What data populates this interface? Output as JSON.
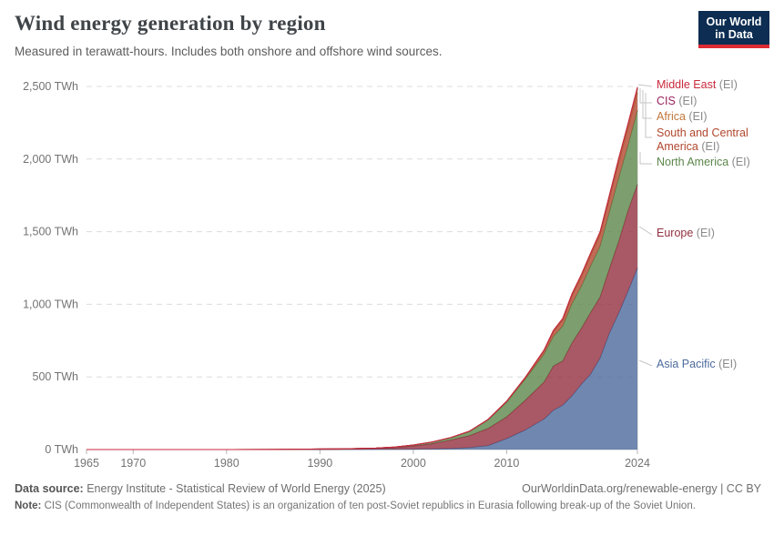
{
  "header": {
    "title": "Wind energy generation by region",
    "subtitle": "Measured in terawatt-hours. Includes both onshore and offshore wind sources."
  },
  "logo": {
    "line1": "Our World",
    "line2": "in Data",
    "bg_color": "#0d2d52",
    "accent_color": "#dd2a33"
  },
  "chart_data": {
    "type": "area",
    "stacked": true,
    "title": "Wind energy generation by region",
    "unit": "TWh",
    "xlabel": "",
    "ylabel": "",
    "xlim": [
      1965,
      2024
    ],
    "ylim": [
      0,
      2500
    ],
    "grid": "horizontal-dashed",
    "legend_position": "right",
    "stack_order": "bottom-to-top",
    "x": [
      1965,
      1970,
      1975,
      1980,
      1985,
      1988,
      1990,
      1992,
      1994,
      1996,
      1998,
      2000,
      2002,
      2004,
      2006,
      2008,
      2010,
      2012,
      2014,
      2015,
      2016,
      2017,
      2018,
      2019,
      2020,
      2021,
      2022,
      2023,
      2024
    ],
    "series": [
      {
        "name": "Asia Pacific",
        "suffix": "(EI)",
        "color": "#4C6A9C",
        "values": [
          0,
          0,
          0,
          0,
          0.02,
          0.08,
          0.15,
          0.35,
          0.7,
          1.2,
          1.7,
          2.5,
          4,
          7,
          13,
          27,
          75,
          135,
          210,
          270,
          305,
          370,
          450,
          520,
          630,
          800,
          940,
          1090,
          1250
        ]
      },
      {
        "name": "Europe",
        "suffix": "(EI)",
        "color": "#93303F",
        "values": [
          0,
          0,
          0,
          0.01,
          0.06,
          0.4,
          0.8,
          1.5,
          3,
          5.5,
          11,
          22,
          36,
          58,
          82,
          118,
          150,
          205,
          255,
          305,
          305,
          365,
          385,
          425,
          420,
          445,
          495,
          555,
          575
        ]
      },
      {
        "name": "North America",
        "suffix": "(EI)",
        "color": "#5C864A",
        "values": [
          0,
          0,
          0,
          0.02,
          0.7,
          2,
          2.8,
          3,
          3.5,
          3.5,
          3.8,
          6,
          11,
          16,
          28,
          58,
          101,
          145,
          192,
          204,
          240,
          270,
          290,
          320,
          350,
          390,
          435,
          450,
          510
        ]
      },
      {
        "name": "South and Central America",
        "suffix": "(EI)",
        "color": "#B1472E",
        "values": [
          0,
          0,
          0,
          0,
          0,
          0,
          0,
          0,
          0,
          0.05,
          0.15,
          0.4,
          0.6,
          1,
          2,
          2.5,
          4,
          9,
          23,
          32,
          42,
          55,
          65,
          72,
          80,
          92,
          108,
          116,
          122
        ]
      },
      {
        "name": "Africa",
        "suffix": "(EI)",
        "color": "#C1763B",
        "values": [
          0,
          0,
          0,
          0,
          0,
          0,
          0,
          0,
          0,
          0.02,
          0.05,
          0.2,
          0.3,
          0.6,
          1,
          1.5,
          2.5,
          3,
          5,
          8,
          10,
          12,
          14,
          15,
          16,
          18,
          20,
          22,
          24
        ]
      },
      {
        "name": "CIS",
        "suffix": "(EI)",
        "color": "#9A2460",
        "values": [
          0,
          0,
          0,
          0,
          0,
          0,
          0,
          0,
          0,
          0,
          0,
          0,
          0,
          0,
          0,
          0,
          0.1,
          0.1,
          0.2,
          0.2,
          0.3,
          0.3,
          0.5,
          1,
          1.5,
          3,
          5,
          7,
          8
        ]
      },
      {
        "name": "Middle East",
        "suffix": "(EI)",
        "color": "#C92A3C",
        "values": [
          0,
          0,
          0,
          0,
          0,
          0,
          0,
          0,
          0,
          0,
          0,
          0,
          0,
          0,
          0,
          0.1,
          0.2,
          0.3,
          0.4,
          0.5,
          0.6,
          0.8,
          1,
          1.5,
          2,
          3,
          4,
          5,
          6
        ]
      }
    ],
    "yticks": [
      {
        "value": 0,
        "label": "0 TWh"
      },
      {
        "value": 500,
        "label": "500 TWh"
      },
      {
        "value": 1000,
        "label": "1,000 TWh"
      },
      {
        "value": 1500,
        "label": "1,500 TWh"
      },
      {
        "value": 2000,
        "label": "2,000 TWh"
      },
      {
        "value": 2500,
        "label": "2,500 TWh"
      }
    ],
    "xticks": [
      {
        "value": 1965,
        "label": "1965"
      },
      {
        "value": 1970,
        "label": "1970"
      },
      {
        "value": 1980,
        "label": "1980"
      },
      {
        "value": 1990,
        "label": "1990"
      },
      {
        "value": 2000,
        "label": "2000"
      },
      {
        "value": 2010,
        "label": "2010"
      },
      {
        "value": 2024,
        "label": "2024"
      }
    ]
  },
  "footer": {
    "datasource_label": "Data source:",
    "datasource_text": "Energy Institute - Statistical Review of World Energy (2025)",
    "link_text": "OurWorldinData.org/renewable-energy | CC BY",
    "note_label": "Note:",
    "note_text": "CIS (Commonwealth of Independent States) is an organization of ten post-Soviet republics in Eurasia following break-up of the Soviet Union."
  }
}
